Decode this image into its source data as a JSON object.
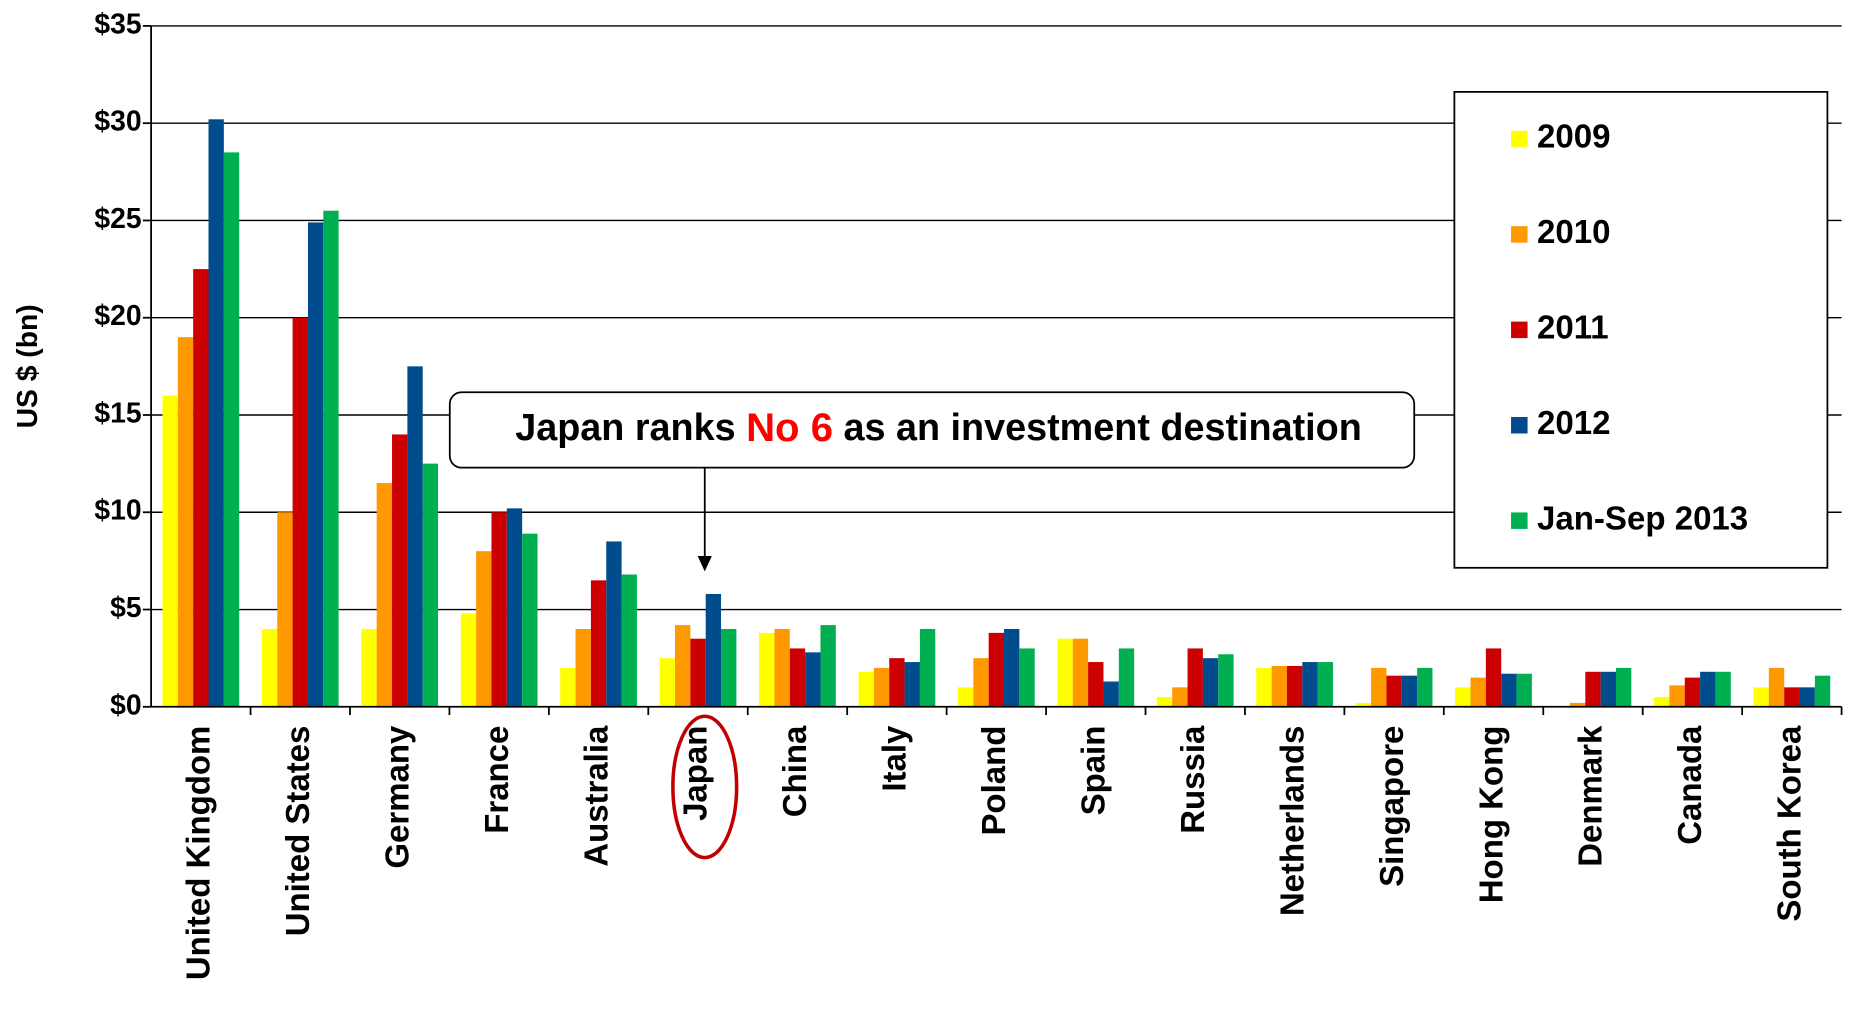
{
  "chart_data": {
    "type": "bar",
    "y_axis_label": "US $ (bn)",
    "annotation": {
      "before": "Japan ranks ",
      "highlight": "No 6",
      "after": " as an investment destination"
    },
    "categories": [
      "United Kingdom",
      "United States",
      "Germany",
      "France",
      "Australia",
      "Japan",
      "China",
      "Italy",
      "Poland",
      "Spain",
      "Russia",
      "Netherlands",
      "Singapore",
      "Hong Kong",
      "Denmark",
      "Canada",
      "South Korea"
    ],
    "series": [
      {
        "name": "2009",
        "color": "#ffff00",
        "values": [
          16,
          4,
          4,
          4.8,
          2,
          2.5,
          3.8,
          1.8,
          1,
          3.5,
          0.5,
          2,
          0.2,
          1,
          0,
          0.5,
          1
        ]
      },
      {
        "name": "2010",
        "color": "#ff9900",
        "values": [
          19,
          10,
          11.5,
          8,
          4,
          4.2,
          4,
          2,
          2.5,
          3.5,
          1,
          2.1,
          2,
          1.5,
          0.2,
          1.1,
          2
        ]
      },
      {
        "name": "2011",
        "color": "#cc0000",
        "values": [
          22.5,
          20,
          14,
          10,
          6.5,
          3.5,
          3,
          2.5,
          3.8,
          2.3,
          3,
          2.1,
          1.6,
          3,
          1.8,
          1.5,
          1
        ]
      },
      {
        "name": "2012",
        "color": "#004c8c",
        "values": [
          30.2,
          24.9,
          17.5,
          10.2,
          8.5,
          5.8,
          2.8,
          2.3,
          4,
          1.3,
          2.5,
          2.3,
          1.6,
          1.7,
          1.8,
          1.8,
          1
        ]
      },
      {
        "name": "Jan-Sep 2013",
        "color": "#00b050",
        "values": [
          28.5,
          25.5,
          12.5,
          8.9,
          6.8,
          4,
          4.2,
          4,
          3,
          3,
          2.7,
          2.3,
          2,
          1.7,
          2,
          1.8,
          1.6
        ]
      }
    ],
    "ylim": [
      0,
      35
    ],
    "yticks": [
      {
        "value": 0,
        "label": "$0"
      },
      {
        "value": 5,
        "label": "$5"
      },
      {
        "value": 10,
        "label": "$10"
      },
      {
        "value": 15,
        "label": "$15"
      },
      {
        "value": 20,
        "label": "$20"
      },
      {
        "value": 25,
        "label": "$25"
      },
      {
        "value": 30,
        "label": "$30"
      },
      {
        "value": 35,
        "label": "$35"
      }
    ],
    "grid": true,
    "legend": "right"
  }
}
